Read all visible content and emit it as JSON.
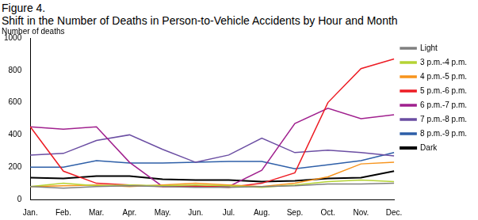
{
  "chart_data": {
    "type": "line",
    "annotations": [
      "Figure 4."
    ],
    "title": "Shift in the Number of Deaths in Person-to-Vehicle Accidents by Hour and Month",
    "ylabel": "Number of deaths",
    "categories": [
      "Jan.",
      "Feb.",
      "Mar.",
      "Apr.",
      "May.",
      "Jun.",
      "Jul.",
      "Aug.",
      "Sep.",
      "Oct.",
      "Nov.",
      "Dec."
    ],
    "series": [
      {
        "name": "Light",
        "color": "#808080",
        "values": [
          80,
          70,
          80,
          85,
          80,
          75,
          75,
          80,
          85,
          95,
          95,
          100
        ]
      },
      {
        "name": "3 p.m.-4 p.m.",
        "color": "#b5d334",
        "values": [
          80,
          100,
          85,
          90,
          85,
          90,
          85,
          75,
          90,
          110,
          120,
          110
        ]
      },
      {
        "name": "4 p.m.-5 p.m.",
        "color": "#f7941d",
        "values": [
          80,
          85,
          90,
          80,
          90,
          100,
          90,
          80,
          100,
          140,
          220,
          230
        ]
      },
      {
        "name": "5 p.m.-6 p.m.",
        "color": "#ed1c24",
        "values": [
          450,
          175,
          100,
          90,
          80,
          85,
          75,
          100,
          165,
          600,
          810,
          870
        ]
      },
      {
        "name": "6 p.m.-7 p.m.",
        "color": "#a0208e",
        "values": [
          450,
          435,
          450,
          230,
          80,
          80,
          80,
          180,
          470,
          565,
          500,
          525
        ]
      },
      {
        "name": "7 p.m.-8 p.m.",
        "color": "#6b4ea3",
        "values": [
          275,
          285,
          365,
          400,
          310,
          230,
          275,
          380,
          290,
          305,
          290,
          270
        ]
      },
      {
        "name": "8 p.m.-9 p.m.",
        "color": "#2e5fa8",
        "values": [
          200,
          200,
          240,
          225,
          225,
          230,
          235,
          235,
          190,
          215,
          240,
          290
        ]
      },
      {
        "name": "Dark",
        "color": "#000000",
        "values": [
          135,
          130,
          145,
          145,
          125,
          120,
          120,
          110,
          115,
          130,
          135,
          175
        ]
      }
    ],
    "ylim": [
      0,
      1000
    ],
    "yticks": [
      0,
      200,
      400,
      600,
      800,
      1000
    ],
    "grid": false,
    "legend": "right"
  }
}
